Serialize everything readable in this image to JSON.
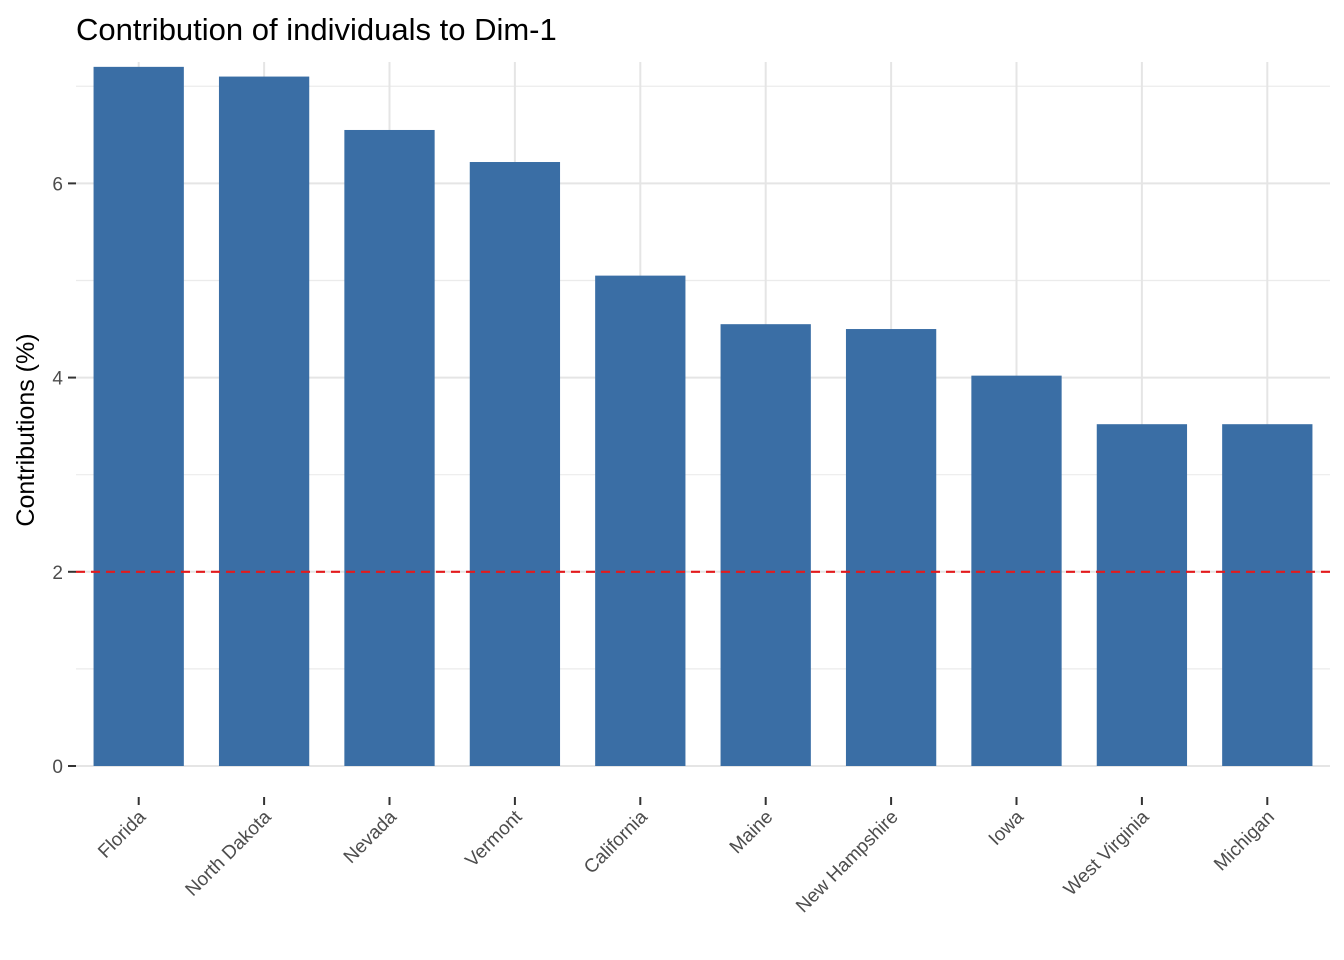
{
  "chart_data": {
    "type": "bar",
    "title": "Contribution of individuals to Dim-1",
    "xlabel": "",
    "ylabel": "Contributions (%)",
    "categories": [
      "Florida",
      "North Dakota",
      "Nevada",
      "Vermont",
      "California",
      "Maine",
      "New Hampshire",
      "Iowa",
      "West Virginia",
      "Michigan"
    ],
    "values": [
      7.2,
      7.1,
      6.55,
      6.22,
      5.05,
      4.55,
      4.5,
      4.02,
      3.52,
      3.52
    ],
    "ylim": [
      0,
      7.25
    ],
    "yticks": [
      0,
      2,
      4,
      6
    ],
    "reference_line": {
      "value": 2,
      "style": "dashed",
      "color": "#e41a1c"
    },
    "bar_color": "#3a6ea5",
    "grid": true,
    "legend": "none"
  }
}
